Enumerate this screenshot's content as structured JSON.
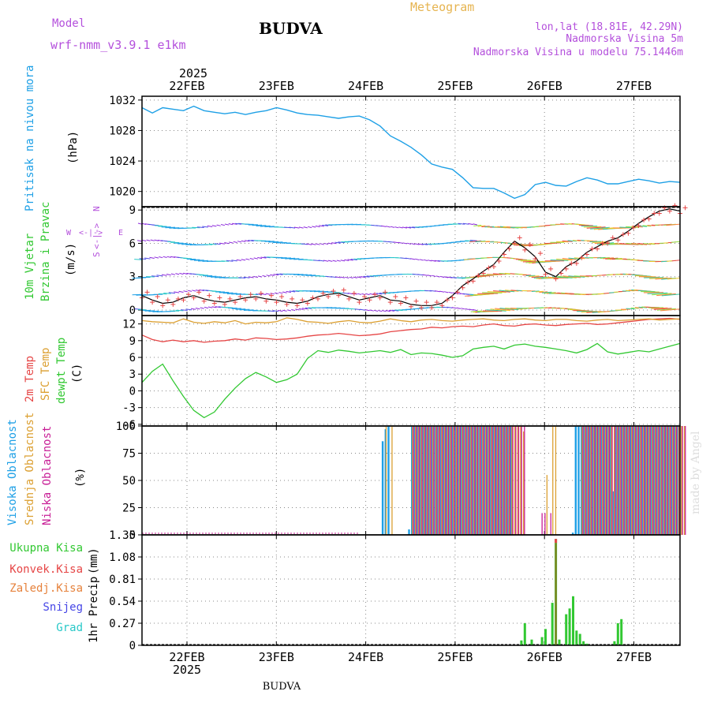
{
  "header": {
    "model_label": "Model",
    "model_name": "wrf-nmm_v3.9.1 e1km",
    "station": "BUDVA",
    "chart_kind": "Meteogram",
    "coords": "lon,lat (18.81E, 42.29N)",
    "altitude": "Nadmorska Visina 5m",
    "model_altitude": "Nadmorska Visina u modelu 75.1446m",
    "footer_station": "BUDVA",
    "watermark": "made by Angel"
  },
  "colors": {
    "pressure": "#1ea0e6",
    "temp2m": "#e64646",
    "sfc_temp": "#dca032",
    "dewpoint": "#32c832",
    "high_cloud": "#1ea0e6",
    "mid_cloud": "#dca032",
    "low_cloud": "#c81e96",
    "precip_total": "#32c832",
    "precip_conv": "#e64646",
    "precip_grid": "#dca032",
    "snow": "#4646e6",
    "graupel": "#28c8c8",
    "title_purple": "#b450dc",
    "meteogram_orange": "#e6b450"
  },
  "chart_data": [
    {
      "type": "line",
      "panel": "pressure",
      "x_dates": [
        "22FEB",
        "23FEB",
        "24FEB",
        "25FEB",
        "26FEB",
        "27FEB"
      ],
      "top_year": "2025",
      "bottom_year": "2025",
      "ylabel": "Pritisak na nivou mora",
      "unit": "(hPa)",
      "yticks": [
        "1020",
        "1024",
        "1028",
        "1032"
      ],
      "ylim": [
        1018,
        1032.5
      ],
      "grid": true,
      "x_hours": [
        0,
        3,
        6,
        9,
        12,
        15,
        18,
        21,
        24,
        27,
        30,
        33,
        36,
        39,
        42,
        45,
        48,
        51,
        54,
        57,
        60,
        63,
        66,
        69,
        72,
        75,
        78,
        81,
        84,
        87,
        90,
        93,
        96,
        99,
        102,
        105,
        108,
        111,
        114,
        117,
        120,
        123,
        126,
        129,
        132,
        135,
        138,
        141,
        144,
        147,
        150,
        153,
        156
      ],
      "series": [
        {
          "values": [
            1031,
            1030.3,
            1031,
            1030.8,
            1030.6,
            1031.2,
            1030.6,
            1030.4,
            1030.2,
            1030.4,
            1030.1,
            1030.4,
            1030.6,
            1031,
            1030.7,
            1030.3,
            1030.1,
            1030,
            1029.8,
            1029.6,
            1029.8,
            1029.9,
            1029.4,
            1028.6,
            1027.3,
            1026.6,
            1025.8,
            1024.8,
            1023.6,
            1023.2,
            1022.9,
            1021.8,
            1020.5,
            1020.4,
            1020.4,
            1019.8,
            1019.1,
            1019.6,
            1020.9,
            1021.2,
            1020.8,
            1020.7,
            1021.3,
            1021.8,
            1021.5,
            1021.0,
            1021.0,
            1021.3,
            1021.6,
            1021.4,
            1021.1,
            1021.3,
            1021.2
          ]
        }
      ]
    },
    {
      "type": "wind",
      "panel": "wind",
      "ylabel_1": "10m Vjetar",
      "ylabel_2": "Brzina i Pravac",
      "unit": "(m/s)",
      "compass_n": "N",
      "compass_s": "S",
      "compass_w": "W",
      "compass_e": "E",
      "compass_glyph": "<-|->",
      "yticks": [
        "0",
        "3",
        "6",
        "9"
      ],
      "ylim": [
        -0.5,
        9.3
      ],
      "rows": [
        0,
        1.5,
        3,
        4.5,
        6,
        7.5
      ],
      "series": [
        {
          "name": "speed",
          "values": [
            1.3,
            0.9,
            0.6,
            0.7,
            1.1,
            1.3,
            1.0,
            0.8,
            0.7,
            0.9,
            1.1,
            1.2,
            1.0,
            0.9,
            0.7,
            0.6,
            0.8,
            1.2,
            1.4,
            1.5,
            1.2,
            0.9,
            1.1,
            1.3,
            0.9,
            0.8,
            0.5,
            0.4,
            0.4,
            0.6,
            1.3,
            2.2,
            2.8,
            3.5,
            4.1,
            5.2,
            6.2,
            5.6,
            4.8,
            3.4,
            3.0,
            3.9,
            4.4,
            5.2,
            5.7,
            6.2,
            6.5,
            7.1,
            7.8,
            8.4,
            8.9,
            9.1,
            8.9
          ]
        }
      ]
    },
    {
      "type": "line",
      "panel": "temperature",
      "ylabel_1": "2m Temp",
      "ylabel_2": "SFC Temp",
      "ylabel_3": "dewpt Temp",
      "unit": "(C)",
      "yticks": [
        "-6",
        "-3",
        "0",
        "3",
        "6",
        "9",
        "12"
      ],
      "ylim": [
        -6.3,
        13.5
      ],
      "series": [
        {
          "name": "2m Temp",
          "values": [
            10,
            9.2,
            8.8,
            9.1,
            8.8,
            9.0,
            8.7,
            8.9,
            9.0,
            9.3,
            9.1,
            9.5,
            9.4,
            9.2,
            9.3,
            9.5,
            9.8,
            10.0,
            10.1,
            10.3,
            10.1,
            9.9,
            10.0,
            10.2,
            10.6,
            10.8,
            11.0,
            11.1,
            11.4,
            11.3,
            11.5,
            11.6,
            11.5,
            11.8,
            12.0,
            11.7,
            11.6,
            11.9,
            12.0,
            11.8,
            11.7,
            11.9,
            12.0,
            12.1,
            11.9,
            12.0,
            12.2,
            12.4,
            12.6,
            12.8,
            12.9,
            13.0,
            12.8
          ]
        },
        {
          "name": "SFC Temp",
          "values": [
            12.6,
            12.4,
            12.3,
            12.2,
            12.9,
            12.3,
            12.1,
            12.4,
            12.2,
            12.6,
            12.0,
            12.3,
            12.2,
            12.4,
            13.1,
            12.8,
            12.4,
            12.3,
            12.1,
            12.4,
            12.6,
            12.3,
            12.2,
            12.5,
            12.9,
            12.6,
            12.4,
            12.7,
            12.8,
            12.6,
            12.5,
            12.7,
            12.8,
            12.9,
            12.7,
            12.6,
            12.8,
            12.9,
            12.7,
            12.6,
            12.8,
            12.8,
            12.6,
            12.5,
            12.7,
            12.8,
            12.6,
            12.7,
            12.8,
            12.9,
            12.7,
            12.8,
            12.9
          ]
        },
        {
          "name": "dewpt Temp",
          "values": [
            1.5,
            3.5,
            4.8,
            1.8,
            -1.0,
            -3.5,
            -4.8,
            -3.8,
            -1.5,
            0.5,
            2.2,
            3.3,
            2.5,
            1.5,
            2.0,
            3.0,
            5.8,
            7.2,
            6.9,
            7.3,
            7.1,
            6.8,
            7.0,
            7.2,
            6.9,
            7.4,
            6.5,
            6.8,
            6.7,
            6.4,
            6.0,
            6.3,
            7.5,
            7.8,
            8.0,
            7.5,
            8.2,
            8.4,
            8.0,
            7.8,
            7.5,
            7.2,
            6.8,
            7.4,
            8.5,
            7.0,
            6.6,
            6.9,
            7.2,
            7.0,
            7.5,
            8.0,
            8.5
          ]
        }
      ]
    },
    {
      "type": "bar",
      "panel": "clouds",
      "ylabel_1": "Visoka Oblacnost",
      "ylabel_2": "Srednja Oblacnost",
      "ylabel_3": "Niska Oblacnost",
      "unit": "(%)",
      "yticks": [
        "0",
        "25",
        "50",
        "75",
        "100"
      ],
      "ylim": [
        0,
        100
      ],
      "series": [
        {
          "name": "Visoka Oblacnost",
          "values": [
            0,
            0,
            0,
            0,
            0,
            0,
            0,
            0,
            0,
            0,
            0,
            0,
            0,
            0,
            0,
            0,
            0,
            0,
            0,
            0,
            0,
            0,
            0,
            0,
            0,
            0,
            0,
            0,
            0,
            0,
            0,
            0,
            0,
            0,
            0,
            0,
            0,
            0,
            0,
            0,
            0,
            0,
            0,
            0,
            0,
            0,
            0,
            0,
            0,
            0,
            0,
            0,
            0,
            0,
            0,
            0,
            0,
            0,
            0,
            0,
            0,
            0,
            0,
            0,
            0,
            0,
            0,
            0,
            0,
            0,
            0,
            0,
            0,
            0,
            0,
            0,
            0,
            0,
            0,
            0,
            0,
            0,
            86,
            97,
            100,
            0,
            0,
            0,
            0,
            0,
            0,
            5,
            100,
            100,
            100,
            100,
            100,
            100,
            100,
            100,
            100,
            100,
            100,
            100,
            100,
            100,
            100,
            100,
            100,
            100,
            100,
            100,
            100,
            100,
            100,
            100,
            100,
            100,
            100,
            100,
            100,
            100,
            100,
            100,
            100,
            100,
            100,
            0,
            0,
            0,
            0,
            0,
            0,
            0,
            0,
            0,
            0,
            0,
            0,
            0,
            0,
            0,
            0,
            0,
            0,
            0,
            0,
            2,
            100,
            100,
            100,
            100,
            100,
            100,
            100,
            100,
            100,
            100,
            100,
            100,
            100,
            40,
            100,
            100,
            100,
            100,
            100,
            100,
            100,
            100,
            100,
            100,
            100,
            100,
            100,
            100,
            100,
            100,
            100,
            100,
            100,
            100,
            100,
            100
          ]
        },
        {
          "name": "Srednja Oblacnost",
          "values": [
            0,
            0,
            0,
            0,
            0,
            0,
            0,
            0,
            0,
            0,
            0,
            0,
            0,
            0,
            0,
            0,
            0,
            0,
            0,
            0,
            0,
            0,
            0,
            0,
            0,
            0,
            0,
            0,
            0,
            0,
            0,
            0,
            0,
            0,
            0,
            0,
            0,
            0,
            0,
            0,
            0,
            0,
            0,
            0,
            0,
            0,
            0,
            0,
            0,
            0,
            0,
            0,
            0,
            0,
            0,
            0,
            0,
            0,
            0,
            0,
            0,
            0,
            0,
            0,
            0,
            0,
            0,
            0,
            0,
            0,
            0,
            0,
            0,
            0,
            0,
            0,
            0,
            0,
            0,
            0,
            0,
            0,
            0,
            100,
            0,
            100,
            0,
            0,
            0,
            0,
            0,
            0,
            100,
            100,
            100,
            100,
            100,
            100,
            100,
            100,
            100,
            100,
            100,
            100,
            100,
            100,
            100,
            100,
            100,
            100,
            100,
            100,
            100,
            100,
            100,
            100,
            100,
            100,
            100,
            100,
            100,
            100,
            100,
            100,
            100,
            100,
            100,
            100,
            100,
            100,
            95,
            0,
            0,
            0,
            0,
            0,
            0,
            0,
            55,
            0,
            100,
            100,
            0,
            0,
            0,
            0,
            0,
            0,
            0,
            0,
            100,
            100,
            100,
            100,
            100,
            100,
            100,
            100,
            100,
            100,
            100,
            100,
            100,
            100,
            100,
            100,
            100,
            100,
            100,
            100,
            100,
            100,
            100,
            100,
            100,
            100,
            100,
            100,
            100,
            100,
            100,
            100,
            100,
            100,
            100,
            100
          ]
        },
        {
          "name": "Niska Oblacnost",
          "values": [
            0,
            0,
            0,
            0,
            0,
            0,
            0,
            0,
            0,
            0,
            0,
            0,
            0,
            0,
            0,
            0,
            0,
            0,
            0,
            0,
            0,
            0,
            0,
            0,
            0,
            0,
            0,
            0,
            0,
            0,
            0,
            0,
            0,
            0,
            0,
            0,
            0,
            0,
            0,
            0,
            0,
            0,
            0,
            0,
            0,
            0,
            0,
            0,
            0,
            0,
            0,
            0,
            0,
            0,
            0,
            0,
            0,
            0,
            0,
            0,
            0,
            0,
            0,
            0,
            0,
            0,
            0,
            0,
            0,
            0,
            0,
            0,
            0,
            0,
            0,
            0,
            0,
            0,
            0,
            0,
            0,
            0,
            0,
            0,
            0,
            0,
            0,
            0,
            0,
            0,
            0,
            0,
            100,
            100,
            100,
            100,
            100,
            100,
            100,
            100,
            100,
            100,
            100,
            100,
            100,
            100,
            100,
            100,
            100,
            100,
            100,
            100,
            100,
            100,
            100,
            100,
            100,
            100,
            100,
            100,
            100,
            100,
            100,
            100,
            100,
            100,
            100,
            100,
            100,
            100,
            100,
            0,
            0,
            0,
            0,
            0,
            20,
            20,
            0,
            20,
            0,
            0,
            0,
            0,
            0,
            0,
            0,
            0,
            0,
            0,
            100,
            100,
            100,
            100,
            100,
            100,
            100,
            100,
            100,
            100,
            100,
            100,
            100,
            100,
            100,
            100,
            100,
            100,
            100,
            100,
            100,
            100,
            100,
            100,
            100,
            100,
            100,
            100,
            100,
            100,
            100,
            100,
            100,
            100,
            100,
            100
          ]
        }
      ]
    },
    {
      "type": "bar",
      "panel": "precip",
      "ylabel": "1hr Precip",
      "unit": "(mm)",
      "legend": [
        "Ukupna Kisa",
        "Konvek.Kisa",
        "Zaledj.Kisa",
        "Snijeg",
        "Grad"
      ],
      "yticks": [
        "0",
        "0.27",
        "0.54",
        "0.81",
        "1.08",
        "1.35"
      ],
      "ylim": [
        0,
        1.35
      ],
      "x_hours": [
        110,
        111,
        113,
        116,
        117,
        119,
        120,
        121,
        123,
        124,
        125,
        126,
        127,
        128,
        129,
        137,
        138,
        139
      ],
      "series": [
        {
          "name": "Ukupna Kisa",
          "values": [
            0.06,
            0.27,
            0.07,
            0.1,
            0.2,
            0.52,
            1.3,
            0.07,
            0.38,
            0.45,
            0.6,
            0.18,
            0.14,
            0.05,
            0.02,
            0.05,
            0.27,
            0.32
          ]
        },
        {
          "name": "Konvek.Kisa",
          "values": [
            0,
            0,
            0,
            0,
            0,
            0,
            0.05,
            0,
            0,
            0,
            0,
            0,
            0,
            0,
            0,
            0,
            0,
            0
          ]
        }
      ]
    }
  ]
}
